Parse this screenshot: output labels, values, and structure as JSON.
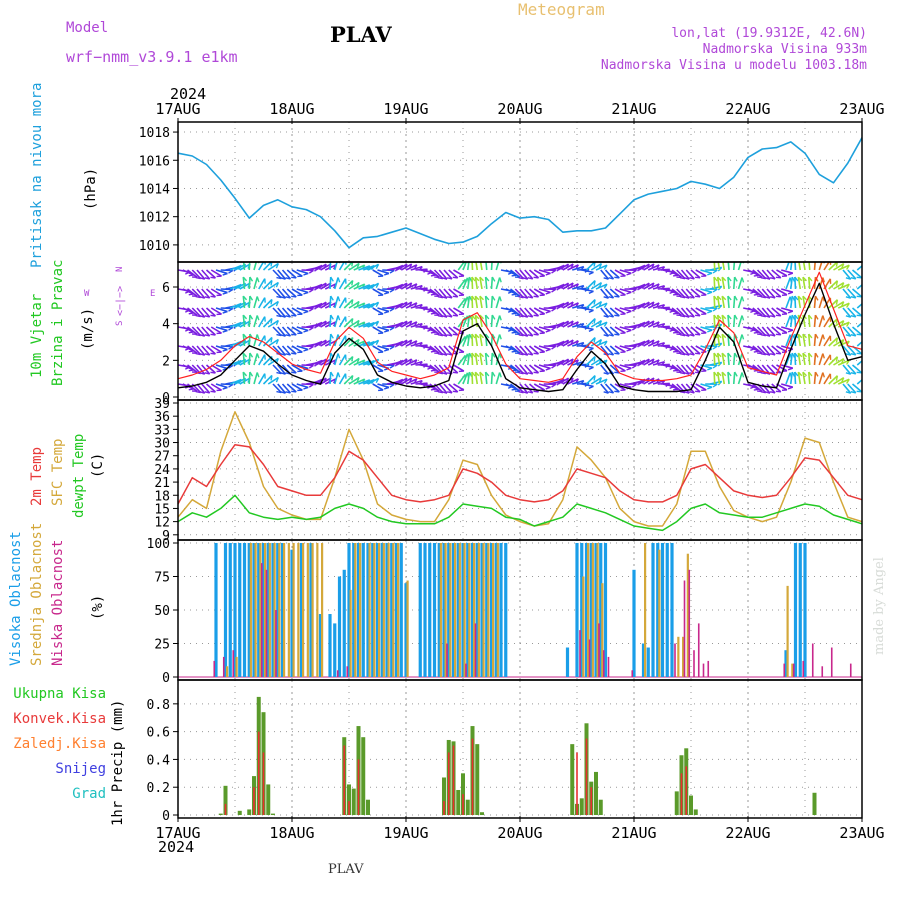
{
  "header": {
    "model_label": "Model",
    "model_name": "wrf−nmm_v3.9.1 e1km",
    "title": "PLAV",
    "product": "Meteogram",
    "lonlat": "lon,lat (19.9312E, 42.6N)",
    "elev": "Nadmorska Visina 933m",
    "elev_model": "Nadmorska Visina u modelu 1003.18m",
    "footer_title": "PLAV",
    "credit": "made by Angel"
  },
  "time_axis": {
    "year_top": "2024",
    "year_bottom": "2024",
    "days": [
      "17AUG",
      "18AUG",
      "19AUG",
      "20AUG",
      "21AUG",
      "22AUG",
      "23AUG"
    ],
    "start_hour": 0,
    "end_hour": 144
  },
  "panel_labels": {
    "pressure": [
      "Pritisak na nivou mora",
      "(hPa)"
    ],
    "wind": [
      "10m Vjetar",
      "Brzina i Pravac",
      "(m/s)"
    ],
    "wind_compass": [
      "N",
      "<−|−>",
      "W",
      "E",
      "S"
    ],
    "temp": [
      "2m Temp",
      "SFC Temp",
      "dewpt Temp",
      "(C)"
    ],
    "cloud": [
      "Visoka Oblacnost",
      "Srednja Oblacnost",
      "Niska Oblacnost",
      "(%)"
    ],
    "precip_legend": [
      "Ukupna Kisa",
      "Konvek.Kisa",
      "Zaledj.Kisa",
      "Snijeg",
      "Grad"
    ],
    "precip_axis": "1hr Precip (mm)"
  },
  "colors": {
    "pressure": "#1ea0dc",
    "wind_speed": "#000000",
    "wind_gust": "#ff2020",
    "temp2m": "#e83a3a",
    "sfc": "#d4a83a",
    "dew": "#22c822",
    "high_cloud": "#1a9ee8",
    "mid_cloud": "#d4a83a",
    "low_cloud": "#c8288c",
    "total_rain": "#5a9a2a",
    "conv_rain": "#e83030",
    "frz_rain": "#ff8030",
    "snow": "#4040e0",
    "hail": "#20c0c0"
  },
  "chart_data": [
    {
      "type": "line",
      "title": "Pritisak na nivou mora",
      "ylabel": "(hPa)",
      "ylim": [
        1009,
        1018.5
      ],
      "yticks": [
        1010,
        1012,
        1014,
        1016,
        1018
      ],
      "x_hours": [
        0,
        3,
        6,
        9,
        12,
        15,
        18,
        21,
        24,
        27,
        30,
        33,
        36,
        39,
        42,
        45,
        48,
        51,
        54,
        57,
        60,
        63,
        66,
        69,
        72,
        75,
        78,
        81,
        84,
        87,
        90,
        93,
        96,
        99,
        102,
        105,
        108,
        111,
        114,
        117,
        120,
        123,
        126,
        129,
        132,
        135,
        138,
        141,
        144
      ],
      "series": [
        {
          "values": [
            1016.5,
            1016.3,
            1015.7,
            1014.6,
            1013.3,
            1011.9,
            1012.8,
            1013.2,
            1012.7,
            1012.5,
            1012.0,
            1011.0,
            1009.8,
            1010.5,
            1010.6,
            1010.9,
            1011.2,
            1010.8,
            1010.4,
            1010.1,
            1010.2,
            1010.6,
            1011.5,
            1012.3,
            1011.9,
            1012.0,
            1011.8,
            1010.9,
            1011.0,
            1011.0,
            1011.2,
            1012.2,
            1013.2,
            1013.6,
            1013.8,
            1014.0,
            1014.5,
            1014.3,
            1014.0,
            1014.8,
            1016.2,
            1016.8,
            1016.9,
            1017.3,
            1016.5,
            1015.0,
            1014.4,
            1015.8,
            1017.6
          ]
        }
      ]
    },
    {
      "type": "line",
      "title": "10m Vjetar Brzina i Pravac",
      "ylabel": "(m/s)",
      "ylim": [
        0,
        7.2
      ],
      "yticks": [
        0,
        2,
        4,
        6
      ],
      "x_hours": [
        0,
        3,
        6,
        9,
        12,
        15,
        18,
        21,
        24,
        27,
        30,
        33,
        36,
        39,
        42,
        45,
        48,
        51,
        54,
        57,
        60,
        63,
        66,
        69,
        72,
        75,
        78,
        81,
        84,
        87,
        90,
        93,
        96,
        99,
        102,
        105,
        108,
        111,
        114,
        117,
        120,
        123,
        126,
        129,
        132,
        135,
        138,
        141,
        144
      ],
      "series": [
        {
          "name": "speed",
          "values": [
            0.5,
            0.6,
            0.8,
            1.2,
            2.0,
            2.8,
            2.5,
            1.8,
            1.2,
            0.9,
            0.7,
            2.4,
            3.2,
            2.6,
            1.2,
            0.8,
            0.6,
            0.5,
            0.6,
            0.9,
            3.6,
            4.0,
            2.8,
            1.0,
            0.5,
            0.4,
            0.3,
            0.4,
            1.5,
            2.5,
            1.8,
            0.6,
            0.4,
            0.3,
            0.3,
            0.3,
            0.4,
            2.0,
            3.8,
            3.0,
            0.8,
            0.6,
            0.5,
            2.6,
            4.5,
            6.2,
            4.0,
            2.0,
            2.2
          ]
        },
        {
          "name": "gust",
          "values": [
            1.0,
            1.2,
            1.5,
            2.0,
            2.8,
            3.3,
            3.0,
            2.4,
            1.8,
            1.5,
            1.3,
            3.0,
            3.8,
            3.2,
            1.9,
            1.4,
            1.2,
            1.0,
            1.2,
            1.6,
            4.2,
            4.6,
            3.4,
            1.8,
            1.0,
            0.9,
            0.8,
            1.0,
            2.2,
            3.0,
            2.4,
            1.3,
            1.0,
            0.9,
            0.9,
            1.0,
            1.2,
            2.6,
            4.2,
            3.5,
            1.6,
            1.4,
            1.2,
            3.2,
            5.0,
            6.8,
            4.8,
            2.8,
            2.6
          ]
        }
      ]
    },
    {
      "type": "line",
      "title": "Temp",
      "ylabel": "(C)",
      "ylim": [
        8.5,
        39
      ],
      "yticks": [
        9,
        12,
        15,
        18,
        21,
        24,
        27,
        30,
        33,
        36,
        39
      ],
      "x_hours": [
        0,
        3,
        6,
        9,
        12,
        15,
        18,
        21,
        24,
        27,
        30,
        33,
        36,
        39,
        42,
        45,
        48,
        51,
        54,
        57,
        60,
        63,
        66,
        69,
        72,
        75,
        78,
        81,
        84,
        87,
        90,
        93,
        96,
        99,
        102,
        105,
        108,
        111,
        114,
        117,
        120,
        123,
        126,
        129,
        132,
        135,
        138,
        141,
        144
      ],
      "series": [
        {
          "name": "2m Temp",
          "values": [
            16,
            22,
            20,
            25,
            29.5,
            29,
            25,
            20,
            19,
            18,
            18,
            22,
            28,
            26,
            22,
            18,
            17,
            16.5,
            17,
            18,
            24,
            23,
            21,
            18,
            17,
            16.5,
            17,
            19,
            24,
            23,
            22,
            19,
            17,
            16.5,
            16.5,
            18,
            24,
            25,
            22,
            19,
            18,
            17.5,
            18,
            22,
            26.5,
            26,
            22,
            18,
            17
          ]
        },
        {
          "name": "SFC Temp",
          "values": [
            13,
            17,
            15,
            28,
            37,
            30,
            20,
            15,
            13.5,
            12.5,
            12.5,
            22,
            33,
            26,
            16,
            13.5,
            12.5,
            12,
            12,
            17,
            26,
            25,
            18,
            13.5,
            12,
            11,
            11.5,
            17,
            29,
            26,
            22,
            15,
            12,
            11,
            11,
            16,
            28,
            28,
            20,
            14.5,
            13,
            12,
            13,
            21,
            31,
            30,
            21,
            13,
            12
          ]
        },
        {
          "name": "dewpt Temp",
          "values": [
            12,
            14,
            13,
            15,
            18,
            14,
            13,
            12.5,
            13,
            12.5,
            13,
            15,
            16,
            15,
            13,
            12,
            11.5,
            11.5,
            11.5,
            13,
            16,
            15.5,
            15,
            13,
            12.5,
            11,
            12,
            13,
            16,
            15,
            14,
            12.5,
            11,
            10.5,
            10,
            12,
            15,
            16,
            14,
            13.5,
            13,
            13,
            14,
            15,
            16,
            15.5,
            13.5,
            12.5,
            11.5
          ]
        }
      ]
    },
    {
      "type": "bar",
      "title": "Oblacnost",
      "ylabel": "(%)",
      "ylim": [
        0,
        100
      ],
      "yticks": [
        0,
        25,
        50,
        75,
        100
      ],
      "series": [
        {
          "name": "Visoka Oblacnost",
          "x_hours": [
            8,
            10,
            11,
            12,
            13,
            14,
            15,
            16,
            17,
            18,
            19,
            20,
            21,
            22,
            24,
            26,
            28,
            30,
            32,
            33,
            34,
            35,
            36,
            37,
            38,
            39,
            40,
            41,
            42,
            43,
            44,
            45,
            46,
            47,
            48,
            51,
            52,
            53,
            54,
            55,
            56,
            57,
            58,
            59,
            60,
            61,
            62,
            63,
            64,
            65,
            66,
            67,
            68,
            69,
            82,
            84,
            85,
            86,
            87,
            88,
            89,
            90,
            96,
            98,
            99,
            100,
            101,
            102,
            103,
            104,
            128,
            130,
            131,
            132
          ],
          "values": [
            100,
            100,
            100,
            100,
            100,
            100,
            100,
            100,
            100,
            100,
            100,
            100,
            100,
            100,
            95,
            100,
            100,
            47,
            47,
            40,
            75,
            80,
            100,
            100,
            100,
            100,
            100,
            100,
            100,
            100,
            100,
            100,
            100,
            100,
            70,
            100,
            100,
            100,
            100,
            100,
            100,
            100,
            100,
            100,
            100,
            100,
            100,
            100,
            100,
            100,
            100,
            100,
            100,
            100,
            22,
            100,
            100,
            100,
            100,
            100,
            100,
            100,
            80,
            25,
            22,
            100,
            100,
            100,
            100,
            100,
            20,
            100,
            100,
            100
          ]
        },
        {
          "name": "Srednja Oblacnost",
          "x_hours": [
            10,
            12,
            15,
            16,
            17,
            18,
            19,
            20,
            21,
            22,
            23,
            24,
            25,
            26,
            27,
            28,
            29,
            30,
            36,
            37,
            38,
            40,
            41,
            42,
            43,
            44,
            45,
            46,
            48,
            55,
            56,
            57,
            58,
            59,
            60,
            61,
            62,
            63,
            64,
            65,
            66,
            67,
            85,
            86,
            87,
            88,
            89,
            98,
            101,
            105,
            106,
            107,
            128,
            129
          ],
          "values": [
            8,
            15,
            100,
            100,
            100,
            100,
            100,
            100,
            100,
            100,
            100,
            100,
            100,
            100,
            100,
            100,
            100,
            100,
            65,
            100,
            100,
            100,
            100,
            100,
            100,
            100,
            100,
            100,
            72,
            100,
            100,
            100,
            100,
            100,
            100,
            100,
            100,
            100,
            100,
            100,
            100,
            100,
            75,
            100,
            100,
            100,
            70,
            100,
            95,
            30,
            30,
            92,
            68,
            10
          ]
        },
        {
          "name": "Niska Oblacnost",
          "x_hours": [
            7,
            9,
            11,
            17,
            18,
            20,
            33,
            35,
            56,
            60,
            62,
            84,
            86,
            88,
            89,
            90,
            95,
            104,
            106,
            107,
            108,
            109,
            110,
            111,
            127,
            129,
            131,
            133,
            135,
            137,
            141
          ],
          "values": [
            12,
            15,
            20,
            85,
            80,
            50,
            5,
            8,
            25,
            10,
            40,
            35,
            28,
            40,
            20,
            15,
            5,
            25,
            72,
            80,
            20,
            40,
            10,
            12,
            10,
            10,
            12,
            25,
            8,
            22,
            10
          ]
        }
      ]
    },
    {
      "type": "bar",
      "title": "1hr Precip",
      "ylabel": "1hr Precip (mm)",
      "ylim": [
        0,
        0.95
      ],
      "yticks": [
        0,
        0.2,
        0.4,
        0.6,
        0.8
      ],
      "series": [
        {
          "name": "Ukupna Kisa",
          "x_hours": [
            9,
            10,
            13,
            15,
            16,
            17,
            18,
            19,
            20,
            35,
            36,
            37,
            38,
            39,
            40,
            56,
            57,
            58,
            59,
            60,
            61,
            62,
            63,
            64,
            83,
            84,
            85,
            86,
            87,
            88,
            89,
            105,
            106,
            107,
            108,
            109,
            134
          ],
          "values": [
            0.01,
            0.21,
            0.03,
            0.04,
            0.28,
            0.85,
            0.74,
            0.22,
            0.01,
            0.56,
            0.22,
            0.19,
            0.64,
            0.56,
            0.11,
            0.27,
            0.54,
            0.53,
            0.18,
            0.3,
            0.11,
            0.64,
            0.51,
            0.02,
            0.51,
            0.08,
            0.12,
            0.66,
            0.24,
            0.31,
            0.11,
            0.17,
            0.43,
            0.48,
            0.14,
            0.04,
            0.16
          ]
        },
        {
          "name": "Konvek.Kisa",
          "x_hours": [
            10,
            16,
            17,
            18,
            35,
            36,
            38,
            56,
            57,
            58,
            60,
            62,
            84,
            86,
            87,
            106,
            107
          ],
          "values": [
            0.08,
            0.2,
            0.6,
            0.45,
            0.5,
            0.1,
            0.4,
            0.1,
            0.45,
            0.5,
            0.15,
            0.55,
            0.45,
            0.55,
            0.2,
            0.3,
            0.35
          ]
        }
      ]
    }
  ]
}
